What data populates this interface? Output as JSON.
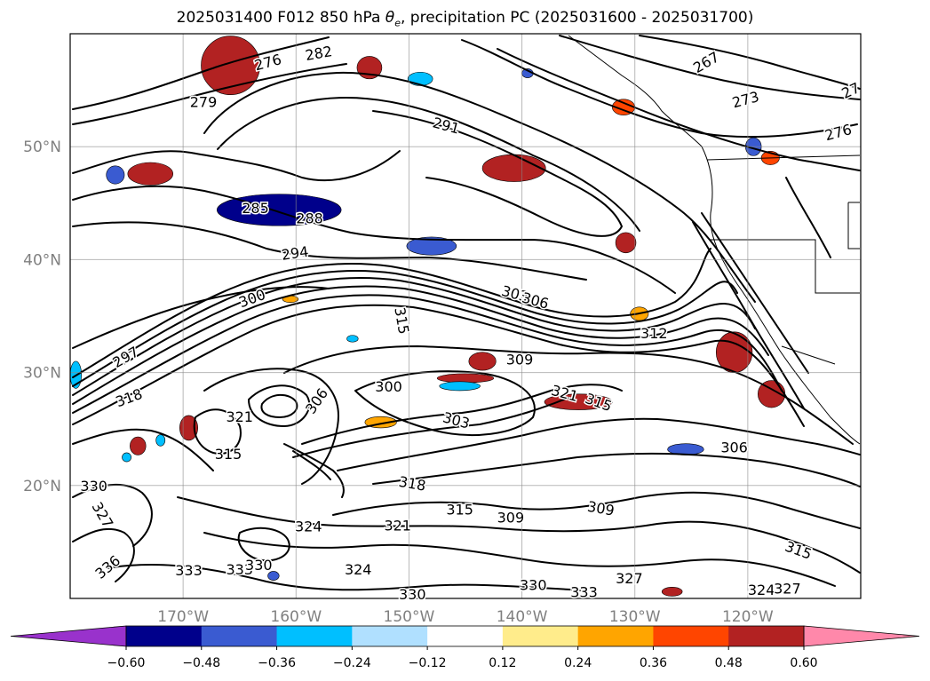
{
  "title": {
    "prefix": "2025031400 F012 850 hPa ",
    "theta_symbol": "θ",
    "theta_subscript": "e",
    "suffix": ", precipitation PC (2025031600 - 2025031700)"
  },
  "map": {
    "lon_range": [
      -180,
      -110
    ],
    "lat_range": [
      10,
      60
    ],
    "lat_gridlines": [
      20,
      30,
      40,
      50
    ],
    "lon_gridlines": [
      -170,
      -160,
      -150,
      -140,
      -130,
      -120
    ],
    "lat_labels": [
      "20°N",
      "30°N",
      "40°N",
      "50°N"
    ],
    "lon_labels": [
      "170°W",
      "160°W",
      "150°W",
      "140°W",
      "130°W",
      "120°W"
    ],
    "grid": true,
    "contour_variable": "850 hPa theta-e",
    "contour_labels": [
      {
        "text": "276",
        "lon": -162.5,
        "lat": 57.5,
        "angle": -15
      },
      {
        "text": "282",
        "lon": -158.0,
        "lat": 58.3,
        "angle": -10
      },
      {
        "text": "279",
        "lon": -168.2,
        "lat": 54.0,
        "angle": 0
      },
      {
        "text": "291",
        "lon": -146.7,
        "lat": 51.9,
        "angle": 15
      },
      {
        "text": "285",
        "lon": -163.6,
        "lat": 44.6,
        "angle": 0
      },
      {
        "text": "288",
        "lon": -158.8,
        "lat": 43.7,
        "angle": 0
      },
      {
        "text": "294",
        "lon": -160.1,
        "lat": 40.6,
        "angle": -8
      },
      {
        "text": "300",
        "lon": -163.9,
        "lat": 36.6,
        "angle": -20
      },
      {
        "text": "303",
        "lon": -140.6,
        "lat": 37.0,
        "angle": 15
      },
      {
        "text": "306",
        "lon": -138.8,
        "lat": 36.4,
        "angle": 15
      },
      {
        "text": "315",
        "lon": -150.6,
        "lat": 34.6,
        "angle": 80
      },
      {
        "text": "312",
        "lon": -128.3,
        "lat": 33.5,
        "angle": 0
      },
      {
        "text": "309",
        "lon": -140.2,
        "lat": 31.2,
        "angle": 0
      },
      {
        "text": "297",
        "lon": -175.1,
        "lat": 31.4,
        "angle": -30
      },
      {
        "text": "318",
        "lon": -174.8,
        "lat": 27.8,
        "angle": -20
      },
      {
        "text": "300",
        "lon": -151.8,
        "lat": 28.8,
        "angle": 0
      },
      {
        "text": "306",
        "lon": -158.2,
        "lat": 27.5,
        "angle": -55
      },
      {
        "text": "321",
        "lon": -165.0,
        "lat": 26.1,
        "angle": 0
      },
      {
        "text": "303",
        "lon": -145.8,
        "lat": 25.8,
        "angle": 15
      },
      {
        "text": "315",
        "lon": -133.2,
        "lat": 27.4,
        "angle": 20
      },
      {
        "text": "321",
        "lon": -136.2,
        "lat": 28.2,
        "angle": 15
      },
      {
        "text": "315",
        "lon": -166.0,
        "lat": 22.8,
        "angle": 0
      },
      {
        "text": "306",
        "lon": -121.2,
        "lat": 23.4,
        "angle": 0
      },
      {
        "text": "318",
        "lon": -149.7,
        "lat": 20.2,
        "angle": 10
      },
      {
        "text": "330",
        "lon": -177.9,
        "lat": 20.0,
        "angle": 0
      },
      {
        "text": "327",
        "lon": -177.1,
        "lat": 17.4,
        "angle": 60
      },
      {
        "text": "324",
        "lon": -158.9,
        "lat": 16.4,
        "angle": 0
      },
      {
        "text": "315",
        "lon": -145.5,
        "lat": 17.9,
        "angle": 0
      },
      {
        "text": "321",
        "lon": -151.0,
        "lat": 16.5,
        "angle": 0
      },
      {
        "text": "309",
        "lon": -141.0,
        "lat": 17.2,
        "angle": 0
      },
      {
        "text": "309",
        "lon": -133.0,
        "lat": 18.0,
        "angle": 10
      },
      {
        "text": "315",
        "lon": -115.5,
        "lat": 14.3,
        "angle": 20
      },
      {
        "text": "336",
        "lon": -176.7,
        "lat": 12.8,
        "angle": -40
      },
      {
        "text": "333",
        "lon": -169.5,
        "lat": 12.5,
        "angle": 0
      },
      {
        "text": "333",
        "lon": -165.0,
        "lat": 12.6,
        "angle": 0
      },
      {
        "text": "330",
        "lon": -163.3,
        "lat": 13.0,
        "angle": 0
      },
      {
        "text": "324",
        "lon": -154.5,
        "lat": 12.6,
        "angle": 0
      },
      {
        "text": "330",
        "lon": -149.7,
        "lat": 10.4,
        "angle": 0
      },
      {
        "text": "330",
        "lon": -139.0,
        "lat": 11.2,
        "angle": 0
      },
      {
        "text": "333",
        "lon": -134.5,
        "lat": 10.6,
        "angle": 0
      },
      {
        "text": "327",
        "lon": -130.5,
        "lat": 11.8,
        "angle": 0
      },
      {
        "text": "324",
        "lon": -118.8,
        "lat": 10.8,
        "angle": 0
      },
      {
        "text": "327",
        "lon": -116.5,
        "lat": 10.9,
        "angle": 0
      },
      {
        "text": "27",
        "lon": -110.9,
        "lat": 55.0,
        "angle": -25
      },
      {
        "text": "273",
        "lon": -120.2,
        "lat": 54.2,
        "angle": -15
      },
      {
        "text": "276",
        "lon": -112.0,
        "lat": 51.3,
        "angle": -15
      },
      {
        "text": "267",
        "lon": -123.7,
        "lat": 57.5,
        "angle": -30
      }
    ],
    "precip_regions": [
      {
        "lon": -165.8,
        "lat": 57.2,
        "rx": 2.6,
        "ry": 2.6,
        "value": 0.5
      },
      {
        "lon": -161.5,
        "lat": 44.4,
        "rx": 5.5,
        "ry": 1.4,
        "value": -0.5
      },
      {
        "lon": -148.0,
        "lat": 41.2,
        "rx": 2.2,
        "ry": 0.8,
        "value": -0.4
      },
      {
        "lon": -140.7,
        "lat": 48.1,
        "rx": 2.8,
        "ry": 1.2,
        "value": 0.5
      },
      {
        "lon": -172.9,
        "lat": 47.6,
        "rx": 2.0,
        "ry": 1.0,
        "value": 0.5
      },
      {
        "lon": -176.0,
        "lat": 47.5,
        "rx": 0.8,
        "ry": 0.8,
        "value": -0.4
      },
      {
        "lon": -130.8,
        "lat": 41.5,
        "rx": 0.9,
        "ry": 0.9,
        "value": 0.5
      },
      {
        "lon": -153.5,
        "lat": 57.0,
        "rx": 1.1,
        "ry": 1.0,
        "value": 0.5
      },
      {
        "lon": -129.6,
        "lat": 35.2,
        "rx": 0.8,
        "ry": 0.6,
        "value": 0.3
      },
      {
        "lon": -121.2,
        "lat": 31.8,
        "rx": 1.6,
        "ry": 1.8,
        "value": 0.5
      },
      {
        "lon": -117.9,
        "lat": 28.1,
        "rx": 1.2,
        "ry": 1.2,
        "value": 0.5
      },
      {
        "lon": -135.0,
        "lat": 27.4,
        "rx": 3.0,
        "ry": 0.7,
        "value": 0.5
      },
      {
        "lon": -152.5,
        "lat": 25.6,
        "rx": 1.4,
        "ry": 0.5,
        "value": 0.3
      },
      {
        "lon": -169.5,
        "lat": 25.1,
        "rx": 0.8,
        "ry": 1.1,
        "value": 0.5
      },
      {
        "lon": -174.0,
        "lat": 23.5,
        "rx": 0.7,
        "ry": 0.8,
        "value": 0.5
      },
      {
        "lon": -143.5,
        "lat": 31.0,
        "rx": 1.2,
        "ry": 0.8,
        "value": 0.5
      },
      {
        "lon": -145.0,
        "lat": 29.5,
        "rx": 2.5,
        "ry": 0.4,
        "value": 0.5
      },
      {
        "lon": -131.0,
        "lat": 53.5,
        "rx": 1.0,
        "ry": 0.7,
        "value": 0.4
      },
      {
        "lon": -118.0,
        "lat": 49.0,
        "rx": 0.8,
        "ry": 0.6,
        "value": 0.4
      },
      {
        "lon": -119.5,
        "lat": 50.0,
        "rx": 0.7,
        "ry": 0.8,
        "value": -0.4
      },
      {
        "lon": -145.5,
        "lat": 28.8,
        "rx": 1.8,
        "ry": 0.4,
        "value": -0.3
      },
      {
        "lon": -125.5,
        "lat": 23.2,
        "rx": 1.6,
        "ry": 0.5,
        "value": -0.4
      },
      {
        "lon": -149.0,
        "lat": 56.0,
        "rx": 1.1,
        "ry": 0.6,
        "value": -0.3
      },
      {
        "lon": -172.0,
        "lat": 24.0,
        "rx": 0.4,
        "ry": 0.5,
        "value": -0.3
      },
      {
        "lon": -175.0,
        "lat": 22.5,
        "rx": 0.4,
        "ry": 0.4,
        "value": -0.3
      },
      {
        "lon": -179.5,
        "lat": 29.8,
        "rx": 0.5,
        "ry": 1.2,
        "value": -0.3
      },
      {
        "lon": -162.0,
        "lat": 12.0,
        "rx": 0.5,
        "ry": 0.4,
        "value": -0.4
      },
      {
        "lon": -126.7,
        "lat": 10.6,
        "rx": 0.9,
        "ry": 0.4,
        "value": 0.5
      },
      {
        "lon": -160.5,
        "lat": 36.5,
        "rx": 0.7,
        "ry": 0.3,
        "value": 0.3
      },
      {
        "lon": -155.0,
        "lat": 33.0,
        "rx": 0.5,
        "ry": 0.3,
        "value": -0.3
      },
      {
        "lon": -139.5,
        "lat": 56.5,
        "rx": 0.5,
        "ry": 0.4,
        "value": -0.4
      }
    ]
  },
  "colorbar": {
    "colors": [
      "#9932cc",
      "#00008b",
      "#3a5bd1",
      "#00bfff",
      "#b0e0ff",
      "#ffffff",
      "#ffec8b",
      "#ffa500",
      "#ff4500",
      "#b22222",
      "#ff88aa"
    ],
    "under_color": "#9932cc",
    "over_color": "#ff88aa",
    "boundaries": [
      -0.6,
      -0.48,
      -0.36,
      -0.24,
      -0.12,
      0.12,
      0.24,
      0.36,
      0.48,
      0.6
    ],
    "tick_labels": [
      "−0.60",
      "−0.48",
      "−0.36",
      "−0.24",
      "−0.12",
      "0.12",
      "0.24",
      "0.36",
      "0.48",
      "0.60"
    ],
    "extend": "both"
  }
}
